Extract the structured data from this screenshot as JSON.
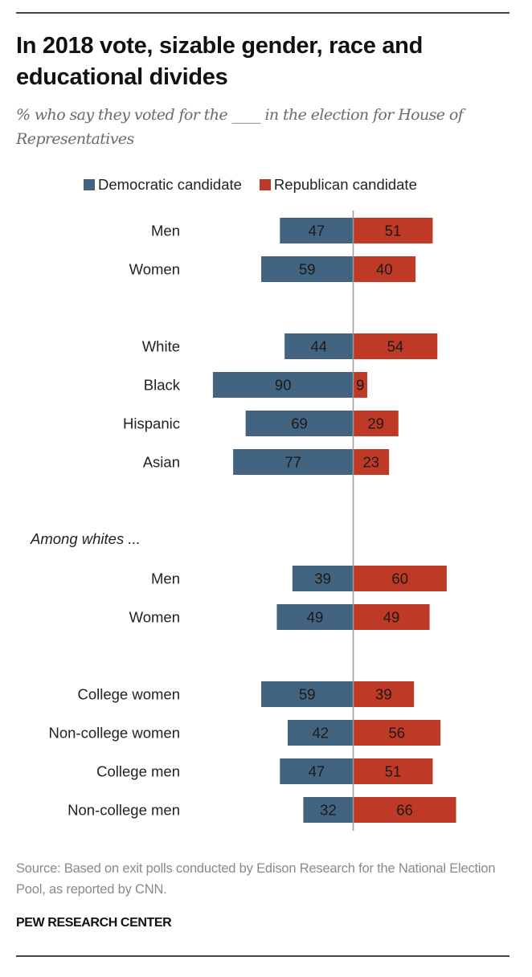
{
  "header": {
    "title": "In 2018 vote, sizable gender, race and educational divides",
    "subtitle": "% who say they voted for the ____ in the election for House of Representatives"
  },
  "footer": {
    "source": "Source: Based on exit polls conducted by Edison Research for the National Election Pool, as reported by CNN.",
    "brand": "PEW RESEARCH CENTER"
  },
  "colors": {
    "democratic": "#436480",
    "republican": "#BF3927",
    "axis": "#999999"
  },
  "chart_data": {
    "type": "bar",
    "orientation": "horizontal-diverging",
    "title": "In 2018 vote, sizable gender, race and educational divides",
    "subtitle": "% who say they voted for the ____ in the election for House of Representatives",
    "xlabel": "",
    "ylabel": "",
    "legend": {
      "position": "top",
      "entries": [
        "Democratic candidate",
        "Republican candidate"
      ]
    },
    "grid": false,
    "xlim": [
      -100,
      100
    ],
    "rows": [
      {
        "kind": "bar",
        "label": "Men",
        "dem": 47,
        "rep": 51
      },
      {
        "kind": "bar",
        "label": "Women",
        "dem": 59,
        "rep": 40
      },
      {
        "kind": "spacer"
      },
      {
        "kind": "bar",
        "label": "White",
        "dem": 44,
        "rep": 54
      },
      {
        "kind": "bar",
        "label": "Black",
        "dem": 90,
        "rep": 9
      },
      {
        "kind": "bar",
        "label": "Hispanic",
        "dem": 69,
        "rep": 29
      },
      {
        "kind": "bar",
        "label": "Asian",
        "dem": 77,
        "rep": 23
      },
      {
        "kind": "spacer"
      },
      {
        "kind": "group",
        "label": "Among whites ..."
      },
      {
        "kind": "bar",
        "label": "Men",
        "dem": 39,
        "rep": 60
      },
      {
        "kind": "bar",
        "label": "Women",
        "dem": 49,
        "rep": 49
      },
      {
        "kind": "spacer"
      },
      {
        "kind": "bar",
        "label": "College women",
        "dem": 59,
        "rep": 39
      },
      {
        "kind": "bar",
        "label": "Non-college women",
        "dem": 42,
        "rep": 56
      },
      {
        "kind": "bar",
        "label": "College men",
        "dem": 47,
        "rep": 51
      },
      {
        "kind": "bar",
        "label": "Non-college men",
        "dem": 32,
        "rep": 66
      }
    ],
    "series": [
      {
        "name": "Democratic candidate",
        "key": "dem",
        "color": "#436480"
      },
      {
        "name": "Republican candidate",
        "key": "rep",
        "color": "#BF3927"
      }
    ]
  }
}
